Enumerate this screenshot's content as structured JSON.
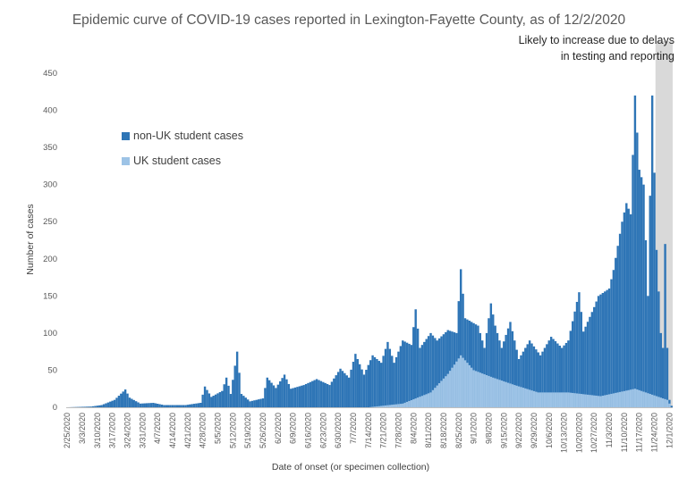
{
  "chart_data": {
    "type": "bar",
    "stacked": true,
    "title": "Epidemic curve of COVID-19 cases reported in Lexington-Fayette County, as of 12/2/2020",
    "xlabel": "Date of onset (or specimen collection)",
    "ylabel": "Number of cases",
    "ylim": [
      0,
      450
    ],
    "yticks": [
      0,
      50,
      100,
      150,
      200,
      250,
      300,
      350,
      400,
      450
    ],
    "grid": false,
    "legend_position": "left",
    "x_start": "2/25/2020",
    "x_end": "12/2/2020",
    "xtick_labels": [
      "2/25/2020",
      "3/3/2020",
      "3/10/2020",
      "3/17/2020",
      "3/24/2020",
      "3/31/2020",
      "4/7/2020",
      "4/14/2020",
      "4/21/2020",
      "4/28/2020",
      "5/5/2020",
      "5/12/2020",
      "5/19/2020",
      "5/26/2020",
      "6/2/2020",
      "6/9/2020",
      "6/16/2020",
      "6/23/2020",
      "6/30/2020",
      "7/7/2020",
      "7/14/2020",
      "7/21/2020",
      "7/28/2020",
      "8/4/2020",
      "8/11/2020",
      "8/18/2020",
      "8/25/2020",
      "9/1/2020",
      "9/8/2020",
      "9/15/2020",
      "9/22/2020",
      "9/29/2020",
      "10/6/2020",
      "10/13/2020",
      "10/20/2020",
      "10/27/2020",
      "11/3/2020",
      "11/10/2020",
      "11/17/2020",
      "11/24/2020",
      "12/1/2020"
    ],
    "series": [
      {
        "name": "non-UK student cases",
        "color": "#2E75B6",
        "keyframes": [
          [
            "2/25/2020",
            0
          ],
          [
            "3/7/2020",
            1
          ],
          [
            "3/12/2020",
            3
          ],
          [
            "3/18/2020",
            10
          ],
          [
            "3/23/2020",
            24
          ],
          [
            "3/25/2020",
            13
          ],
          [
            "3/30/2020",
            5
          ],
          [
            "4/5/2020",
            6
          ],
          [
            "4/10/2020",
            3
          ],
          [
            "4/20/2020",
            3
          ],
          [
            "4/27/2020",
            6
          ],
          [
            "4/29/2020",
            28
          ],
          [
            "5/2/2020",
            14
          ],
          [
            "5/7/2020",
            22
          ],
          [
            "5/9/2020",
            40
          ],
          [
            "5/11/2020",
            18
          ],
          [
            "5/14/2020",
            75
          ],
          [
            "5/16/2020",
            18
          ],
          [
            "5/20/2020",
            8
          ],
          [
            "5/26/2020",
            12
          ],
          [
            "5/28/2020",
            40
          ],
          [
            "6/1/2020",
            26
          ],
          [
            "6/5/2020",
            44
          ],
          [
            "6/8/2020",
            25
          ],
          [
            "6/14/2020",
            30
          ],
          [
            "6/20/2020",
            38
          ],
          [
            "6/26/2020",
            30
          ],
          [
            "7/1/2020",
            52
          ],
          [
            "7/5/2020",
            40
          ],
          [
            "7/8/2020",
            72
          ],
          [
            "7/12/2020",
            44
          ],
          [
            "7/16/2020",
            70
          ],
          [
            "7/20/2020",
            60
          ],
          [
            "7/23/2020",
            88
          ],
          [
            "7/26/2020",
            60
          ],
          [
            "7/30/2020",
            90
          ],
          [
            "8/3/2020",
            84
          ],
          [
            "8/5/2020",
            132
          ],
          [
            "8/7/2020",
            80
          ],
          [
            "8/12/2020",
            100
          ],
          [
            "8/15/2020",
            90
          ],
          [
            "8/20/2020",
            104
          ],
          [
            "8/24/2020",
            100
          ],
          [
            "8/26/2020",
            186
          ],
          [
            "8/28/2020",
            120
          ],
          [
            "9/3/2020",
            110
          ],
          [
            "9/6/2020",
            80
          ],
          [
            "9/9/2020",
            140
          ],
          [
            "9/11/2020",
            110
          ],
          [
            "9/14/2020",
            80
          ],
          [
            "9/18/2020",
            115
          ],
          [
            "9/22/2020",
            65
          ],
          [
            "9/27/2020",
            90
          ],
          [
            "10/2/2020",
            70
          ],
          [
            "10/7/2020",
            95
          ],
          [
            "10/12/2020",
            80
          ],
          [
            "10/15/2020",
            90
          ],
          [
            "10/20/2020",
            155
          ],
          [
            "10/22/2020",
            102
          ],
          [
            "10/27/2020",
            135
          ],
          [
            "10/29/2020",
            150
          ],
          [
            "11/3/2020",
            160
          ],
          [
            "11/5/2020",
            185
          ],
          [
            "11/9/2020",
            250
          ],
          [
            "11/11/2020",
            275
          ],
          [
            "11/13/2020",
            260
          ],
          [
            "11/15/2020",
            420
          ],
          [
            "11/17/2020",
            320
          ],
          [
            "11/19/2020",
            300
          ],
          [
            "11/21/2020",
            150
          ],
          [
            "11/23/2020",
            420
          ],
          [
            "11/25/2020",
            212
          ],
          [
            "11/27/2020",
            100
          ],
          [
            "11/28/2020",
            80
          ],
          [
            "11/29/2020",
            220
          ],
          [
            "11/30/2020",
            80
          ],
          [
            "12/1/2020",
            10
          ],
          [
            "12/2/2020",
            2
          ]
        ]
      },
      {
        "name": "UK student cases",
        "color": "#9DC3E6",
        "keyframes": [
          [
            "2/25/2020",
            0
          ],
          [
            "7/14/2020",
            0
          ],
          [
            "7/30/2020",
            5
          ],
          [
            "8/12/2020",
            20
          ],
          [
            "8/20/2020",
            45
          ],
          [
            "8/26/2020",
            70
          ],
          [
            "9/1/2020",
            50
          ],
          [
            "9/10/2020",
            40
          ],
          [
            "9/20/2020",
            30
          ],
          [
            "10/1/2020",
            20
          ],
          [
            "10/15/2020",
            20
          ],
          [
            "10/30/2020",
            15
          ],
          [
            "11/15/2020",
            25
          ],
          [
            "11/30/2020",
            10
          ],
          [
            "12/2/2020",
            0
          ]
        ]
      }
    ],
    "annotations": [
      {
        "type": "shaded-region",
        "from": "11/25/2020",
        "to": "12/2/2020",
        "text": "Likely to increase due to delays in testing and reporting"
      }
    ]
  },
  "labels": {
    "title": "Epidemic curve of COVID-19 cases reported in Lexington-Fayette County, as of 12/2/2020",
    "note": "Likely to increase due to delays in testing and reporting",
    "legend_nonuk": "non-UK student cases",
    "legend_uk": "UK student cases",
    "ylabel": "Number of cases",
    "xlabel": "Date of onset (or specimen collection)"
  }
}
